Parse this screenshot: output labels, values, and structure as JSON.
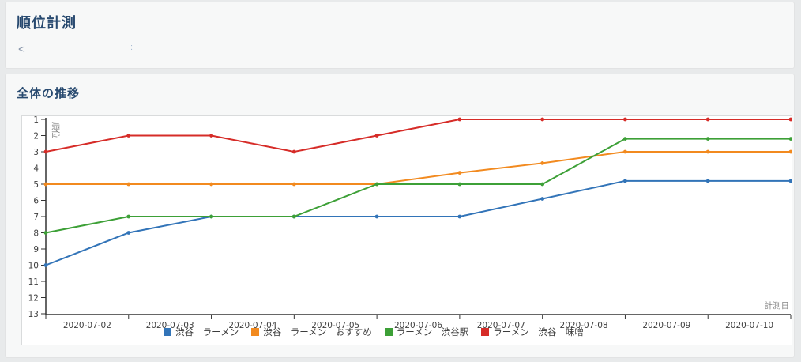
{
  "header": {
    "title": "順位計測",
    "back_symbol": "<",
    "detail": ":"
  },
  "section": {
    "title": "全体の推移"
  },
  "chart_data": {
    "type": "line",
    "title": "全体の推移",
    "xlabel": "計測日",
    "ylabel": "順位",
    "y_axis_inverted": true,
    "ylim": [
      1,
      13
    ],
    "y_ticks": [
      1,
      2,
      3,
      4,
      5,
      6,
      7,
      8,
      9,
      10,
      11,
      12,
      13
    ],
    "x_tick_labels": [
      "2020-07-02",
      "2020-07-03",
      "2020-07-04",
      "2020-07-05",
      "2020-07-06",
      "2020-07-07",
      "2020-07-08",
      "2020-07-09",
      "2020-07-10"
    ],
    "points_per_series": 10,
    "legend_position": "bottom",
    "grid": false,
    "series": [
      {
        "name": "渋谷　ラーメン",
        "color": "#3274b8",
        "values": [
          10,
          8,
          7,
          7,
          7,
          7,
          5.9,
          4.8,
          4.8,
          4.8
        ]
      },
      {
        "name": "渋谷　ラーメン　おすすめ",
        "color": "#f28a1f",
        "values": [
          5,
          5,
          5,
          5,
          5,
          4.3,
          3.7,
          3,
          3,
          3
        ]
      },
      {
        "name": "ラーメン　渋谷駅",
        "color": "#3da037",
        "values": [
          8,
          7,
          7,
          7,
          5,
          5,
          5,
          2.2,
          2.2,
          2.2
        ]
      },
      {
        "name": "ラーメン　渋谷　味噌",
        "color": "#d62c28",
        "values": [
          3,
          2,
          2,
          3,
          2,
          1,
          1,
          1,
          1,
          1
        ]
      }
    ]
  }
}
